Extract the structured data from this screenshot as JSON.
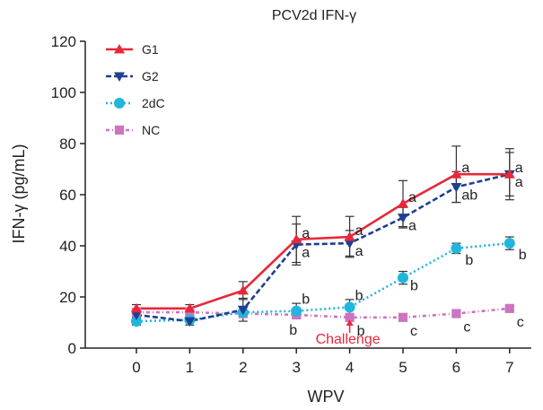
{
  "chart_data": {
    "type": "line",
    "title": "PCV2d IFN-γ",
    "xlabel": "WPV",
    "ylabel": "IFN-γ (pg/mL)",
    "x": [
      0,
      1,
      2,
      3,
      4,
      5,
      6,
      7
    ],
    "xticks": [
      "0",
      "1",
      "2",
      "3",
      "4",
      "5",
      "6",
      "7"
    ],
    "ylim": [
      0,
      120
    ],
    "yticks": [
      "0",
      "20",
      "40",
      "60",
      "80",
      "100",
      "120"
    ],
    "grid": false,
    "legend_position": "top-left",
    "series": [
      {
        "name": "G1",
        "color": "#e8283a",
        "marker": "triangle-up",
        "line": "solid",
        "values": [
          15.5,
          15.5,
          22.5,
          42.5,
          43.5,
          56.5,
          68,
          68
        ],
        "errors": [
          1.5,
          1.5,
          3.5,
          9,
          8,
          9,
          11,
          10
        ],
        "sig_labels": [
          "",
          "",
          "",
          "a",
          "a",
          "a",
          "a",
          "a"
        ]
      },
      {
        "name": "G2",
        "color": "#1f3f8f",
        "marker": "triangle-down",
        "line": "dashed",
        "values": [
          13,
          10.5,
          15,
          40.5,
          41,
          51,
          63,
          68
        ],
        "errors": [
          2,
          1.5,
          4.5,
          8,
          5,
          4,
          6,
          8.5
        ],
        "sig_labels": [
          "",
          "",
          "",
          "a",
          "a",
          "a",
          "ab",
          "a"
        ]
      },
      {
        "name": "2dC",
        "color": "#22b6de",
        "marker": "circle",
        "line": "dotted",
        "values": [
          10.5,
          11,
          14,
          14.5,
          16,
          27.5,
          39,
          41
        ],
        "errors": [
          1.5,
          1,
          2,
          3,
          3,
          2.5,
          2,
          2.5
        ],
        "sig_labels": [
          "",
          "",
          "",
          "b",
          "b",
          "b",
          "b",
          "b"
        ]
      },
      {
        "name": "NC",
        "color": "#cc74c0",
        "marker": "square",
        "line": "dash-dot",
        "values": [
          14,
          14,
          13.5,
          13,
          12,
          12,
          13.5,
          15.5
        ],
        "errors": [
          0.8,
          0.8,
          0.8,
          0.8,
          0.8,
          0.8,
          0.8,
          0.8
        ],
        "sig_labels": [
          "",
          "",
          "",
          "b",
          "b",
          "c",
          "c",
          "c"
        ]
      }
    ],
    "annotations": [
      {
        "text": "Challenge",
        "x": 4,
        "color": "#e8283a"
      }
    ]
  }
}
